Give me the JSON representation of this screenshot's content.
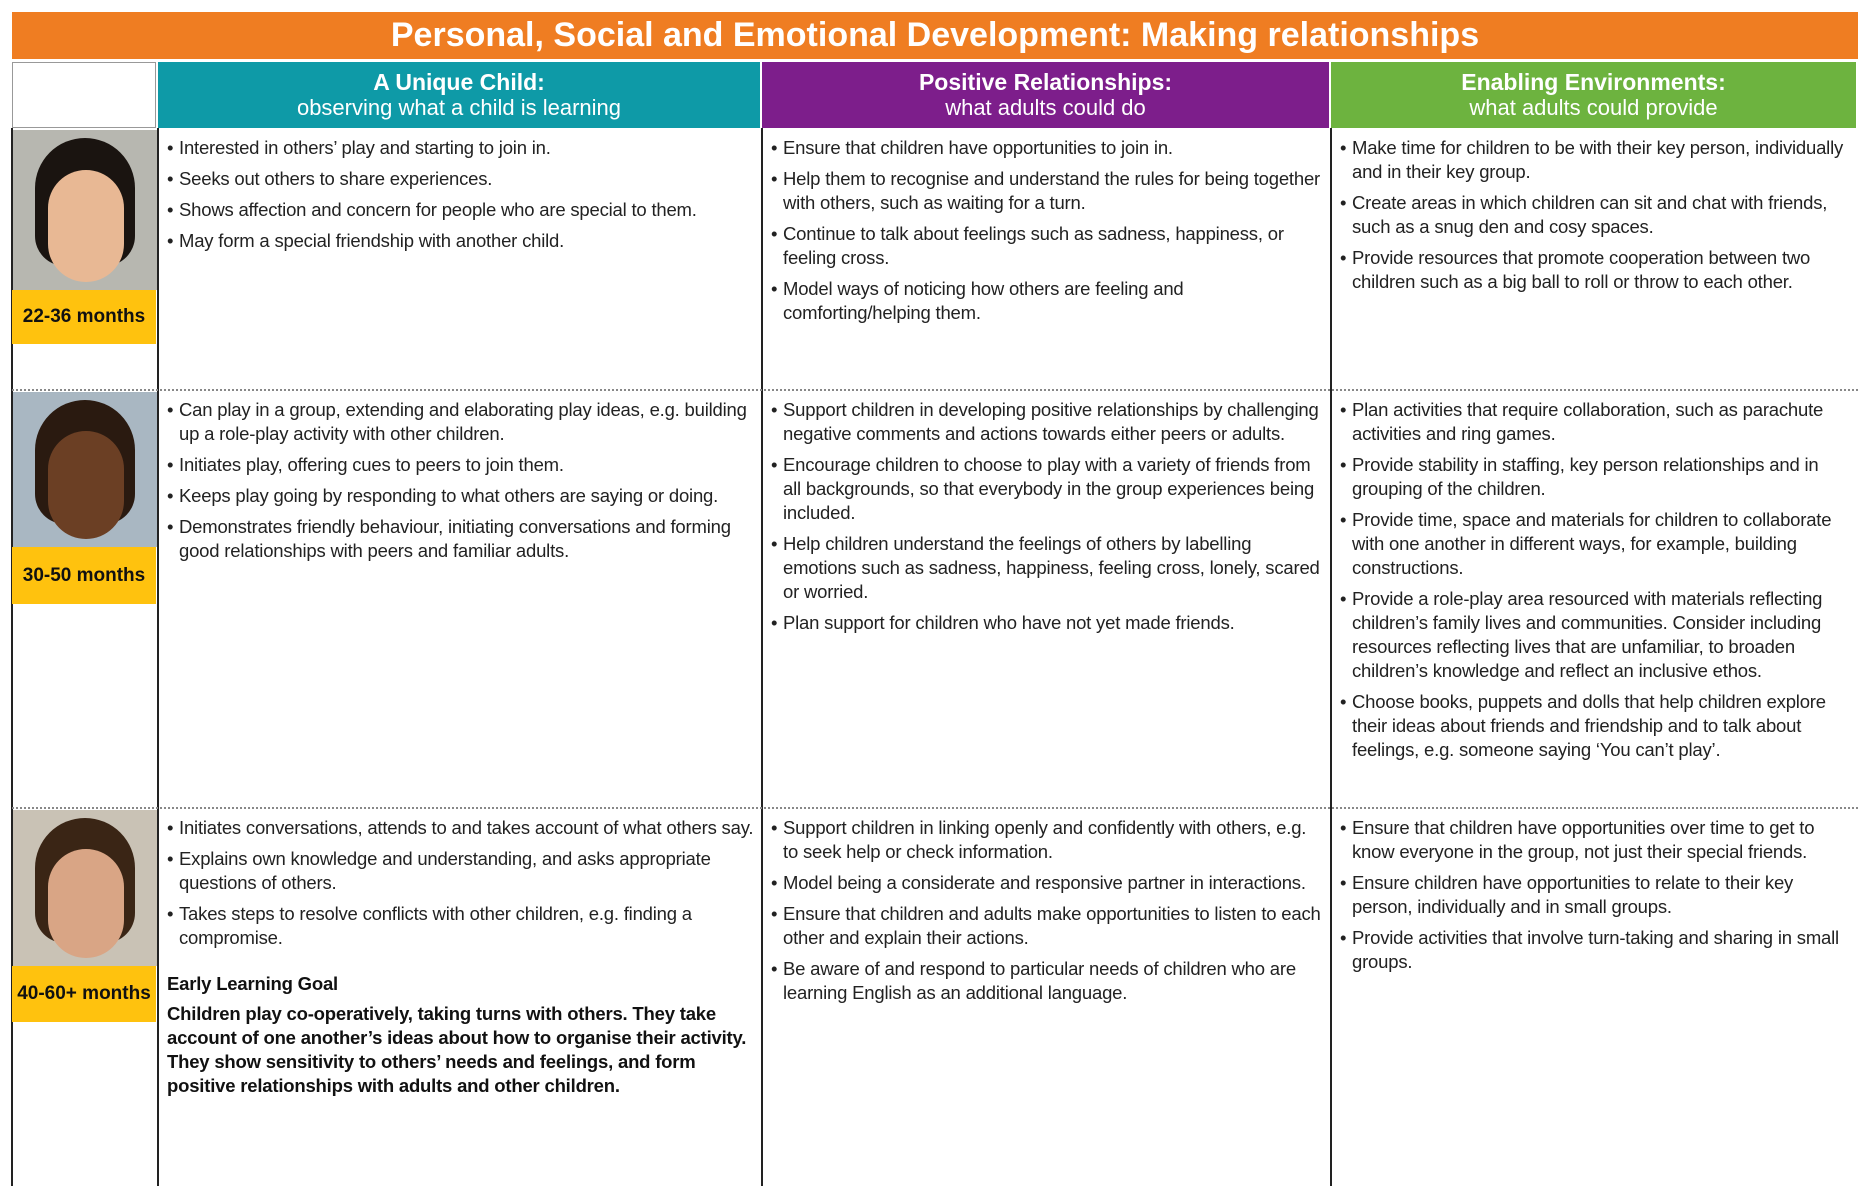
{
  "title": "Personal, Social and Emotional Development:  Making relationships",
  "headers": [
    {
      "title": "A Unique Child:",
      "subtitle": "observing what a child is learning"
    },
    {
      "title": "Positive Relationships:",
      "subtitle": "what adults could do"
    },
    {
      "title": "Enabling Environments:",
      "subtitle": "what adults could provide"
    }
  ],
  "rows": [
    {
      "age": "22-36 months",
      "cells": [
        [
          "Interested in others’ play and starting to join in.",
          "Seeks out others to share experiences.",
          "Shows affection and concern for people who are special to them.",
          "May form a special friendship with another child."
        ],
        [
          "Ensure that children have opportunities to join in.",
          "Help them to recognise and understand the rules for being together with others, such as waiting for a turn.",
          "Continue to talk about feelings such as sadness, happiness, or feeling cross.",
          "Model ways of noticing how others are feeling and comforting/helping them."
        ],
        [
          "Make time for children to be with their key person, individually and in their key group.",
          "Create areas in which children can sit and chat with friends, such as a snug den and cosy spaces.",
          "Provide resources that promote cooperation between two children such as a big ball to roll or throw to each other."
        ]
      ]
    },
    {
      "age": "30-50 months",
      "cells": [
        [
          "Can play in a group, extending and elaborating play ideas, e.g. building up a role-play activity with other children.",
          "Initiates play, offering cues to peers to join them.",
          "Keeps play going by responding to what others are saying or doing.",
          "Demonstrates friendly behaviour, initiating conversations and forming good relationships with peers and familiar adults."
        ],
        [
          "Support children in developing positive relationships by challenging negative comments and actions towards either peers or adults.",
          "Encourage children to choose to play with a variety of friends from all backgrounds, so that everybody in the group experiences being included.",
          "Help children understand the feelings of others by labelling emotions such as sadness, happiness, feeling cross, lonely, scared or worried.",
          "Plan support for children who have not yet made friends."
        ],
        [
          "Plan activities that require collaboration, such as parachute activities and ring games.",
          "Provide stability in staffing, key person relationships and in grouping of the children.",
          "Provide time, space and materials for children to collaborate with one another in different ways, for example, building constructions.",
          "Provide a role-play area resourced with materials reflecting children’s family lives and communities. Consider including resources reflecting lives that are unfamiliar, to broaden children’s knowledge and reflect an inclusive ethos.",
          "Choose books, puppets and dolls that help children explore their ideas about friends and friendship and to talk about feelings, e.g. someone saying ‘You can’t play’."
        ]
      ]
    },
    {
      "age": "40-60+ months",
      "cells": [
        [
          "Initiates conversations, attends to and takes account of what others say.",
          "Explains own knowledge and understanding, and asks appropriate questions of others.",
          "Takes steps to resolve conflicts with other children, e.g. finding a compromise."
        ],
        [
          "Support children in linking openly and confidently with others, e.g. to seek help or check information.",
          "Model being a considerate and responsive partner in interactions.",
          "Ensure that children and adults make opportunities to listen to each other and explain their actions.",
          "Be aware of and respond to particular needs of children who are learning English as an additional language."
        ],
        [
          "Ensure that children have opportunities over time to get to know everyone in the group, not just their special friends.",
          "Ensure children have opportunities to relate to their key person, individually and in small groups.",
          "Provide activities that involve turn-taking and sharing in small groups."
        ]
      ]
    }
  ],
  "goal": {
    "heading": "Early Learning Goal",
    "text": "Children play co-operatively, taking turns with others. They take account of one another’s ideas about how to organise their activity. They show sensitivity to others’ needs and feelings, and form positive relationships with adults and other children."
  }
}
